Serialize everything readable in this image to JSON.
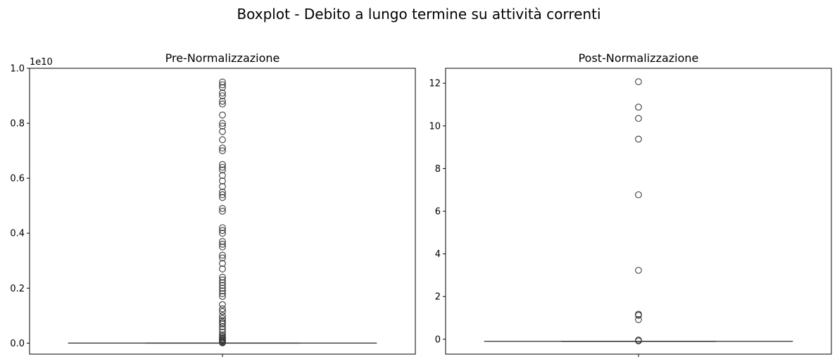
{
  "figure": {
    "suptitle": "Boxplot - Debito a lungo termine su attività correnti"
  },
  "chart_data": [
    {
      "type": "box",
      "title": "Pre-Normalizzazione",
      "xlabel": "",
      "ylabel": "",
      "offset_label": "1e10",
      "ylim": [
        -0.04,
        1.0
      ],
      "yticks": [
        0.0,
        0.2,
        0.4,
        0.6,
        0.8,
        1.0
      ],
      "ytick_labels": [
        "0.0",
        "0.2",
        "0.4",
        "0.6",
        "0.8",
        "1.0"
      ],
      "box": {
        "whisker_low": 0.0,
        "q1": 0.0,
        "median": 0.0,
        "q3": 0.0,
        "whisker_high": 0.0
      },
      "outliers": [
        0.001,
        0.003,
        0.005,
        0.008,
        0.01,
        0.013,
        0.016,
        0.02,
        0.025,
        0.03,
        0.04,
        0.05,
        0.06,
        0.07,
        0.075,
        0.082,
        0.09,
        0.1,
        0.115,
        0.125,
        0.14,
        0.17,
        0.18,
        0.19,
        0.2,
        0.21,
        0.22,
        0.23,
        0.24,
        0.27,
        0.29,
        0.31,
        0.32,
        0.35,
        0.36,
        0.37,
        0.4,
        0.41,
        0.42,
        0.48,
        0.49,
        0.53,
        0.54,
        0.55,
        0.57,
        0.59,
        0.61,
        0.63,
        0.64,
        0.65,
        0.7,
        0.71,
        0.74,
        0.77,
        0.79,
        0.8,
        0.83,
        0.87,
        0.88,
        0.9,
        0.91,
        0.93,
        0.94,
        0.95
      ]
    },
    {
      "type": "box",
      "title": "Post-Normalizzazione",
      "xlabel": "",
      "ylabel": "",
      "ylim": [
        -0.7,
        12.7
      ],
      "yticks": [
        0,
        2,
        4,
        6,
        8,
        10,
        12
      ],
      "ytick_labels": [
        "0",
        "2",
        "4",
        "6",
        "8",
        "10",
        "12"
      ],
      "box": {
        "whisker_low": -0.1,
        "q1": -0.1,
        "median": -0.1,
        "q3": -0.1,
        "whisker_high": -0.1
      },
      "outliers": [
        -0.08,
        -0.04,
        0.92,
        1.12,
        1.17,
        3.23,
        6.77,
        9.38,
        10.35,
        10.88,
        12.07
      ]
    }
  ]
}
